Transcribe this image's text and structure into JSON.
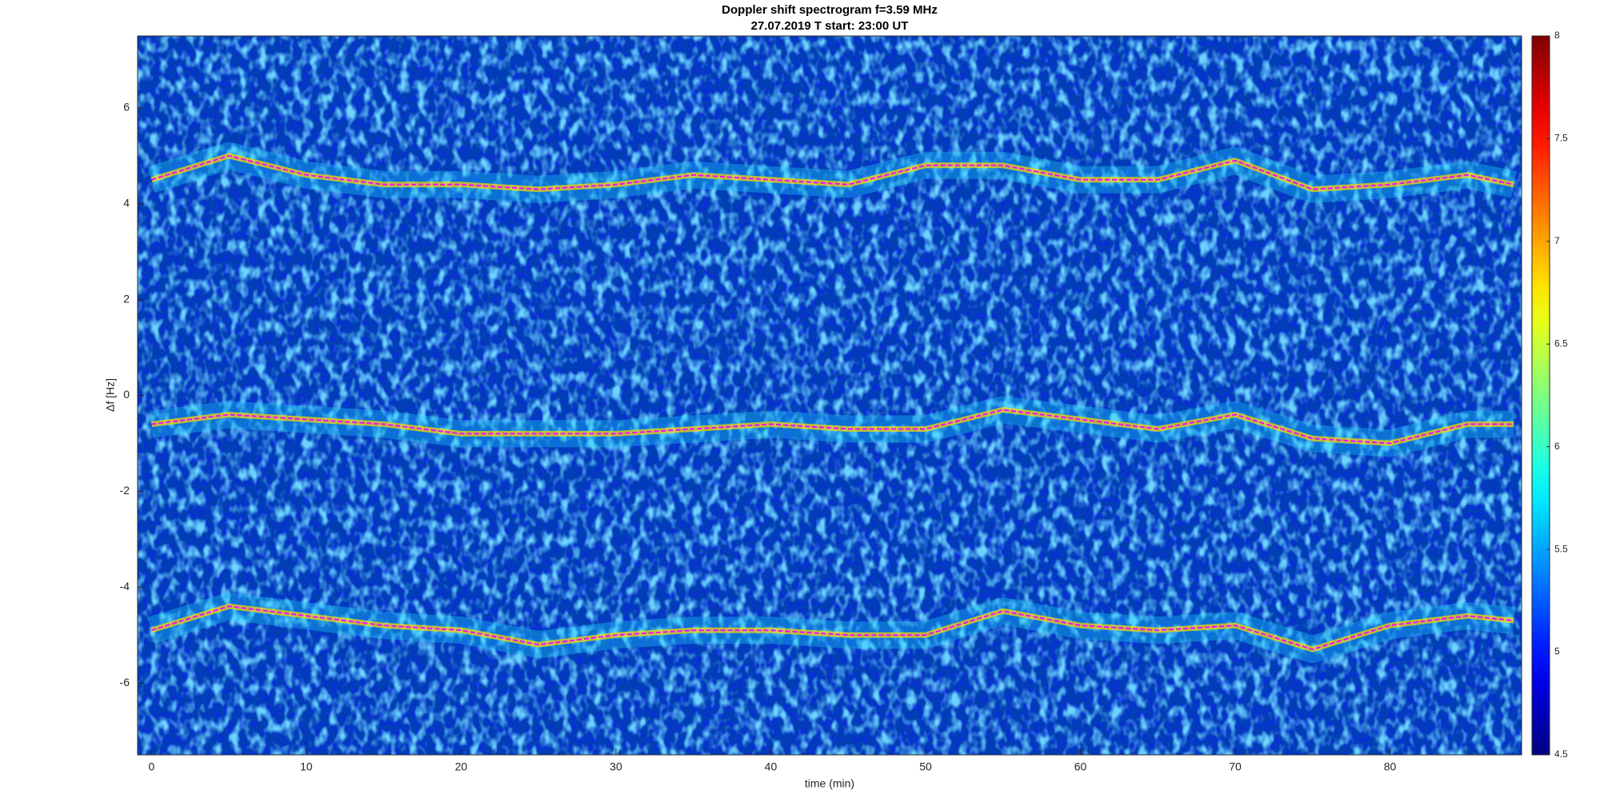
{
  "chart_data": {
    "type": "spectrogram",
    "title": "Doppler shift spectrogram f=3.59 MHz",
    "subtitle": "27.07.2019    T start: 23:00 UT",
    "x_label": "time (min)",
    "y_label": "Δf [Hz]",
    "xlim": [
      -0.9,
      88.5
    ],
    "ylim": [
      -7.5,
      7.5
    ],
    "xticks": [
      0,
      10,
      20,
      30,
      40,
      50,
      60,
      70,
      80
    ],
    "yticks": [
      -6,
      -4,
      -2,
      0,
      2,
      4,
      6
    ],
    "x": [
      0,
      5,
      10,
      15,
      20,
      25,
      30,
      35,
      40,
      45,
      50,
      55,
      60,
      65,
      70,
      75,
      80,
      85,
      88
    ],
    "series": [
      {
        "color": "#ff00ff",
        "values": [
          4.5,
          5.0,
          4.6,
          4.4,
          4.4,
          4.3,
          4.4,
          4.6,
          4.5,
          4.4,
          4.8,
          4.8,
          4.5,
          4.5,
          4.9,
          4.3,
          4.4,
          4.6,
          4.4
        ]
      },
      {
        "color": "#ff00ff",
        "values": [
          -0.6,
          -0.4,
          -0.5,
          -0.6,
          -0.8,
          -0.8,
          -0.8,
          -0.7,
          -0.6,
          -0.7,
          -0.7,
          -0.3,
          -0.5,
          -0.7,
          -0.4,
          -0.9,
          -1.0,
          -0.6,
          -0.6
        ]
      },
      {
        "color": "#ff00ff",
        "values": [
          -4.9,
          -4.4,
          -4.6,
          -4.8,
          -4.9,
          -5.2,
          -5.0,
          -4.9,
          -4.9,
          -5.0,
          -5.0,
          -4.5,
          -4.8,
          -4.9,
          -4.8,
          -5.3,
          -4.8,
          -4.6,
          -4.7
        ]
      }
    ],
    "colormap": "jet",
    "colorbar": {
      "lim": [
        4.5,
        8
      ],
      "ticks": [
        4.5,
        5,
        5.5,
        6,
        6.5,
        7,
        7.5,
        8
      ]
    }
  }
}
